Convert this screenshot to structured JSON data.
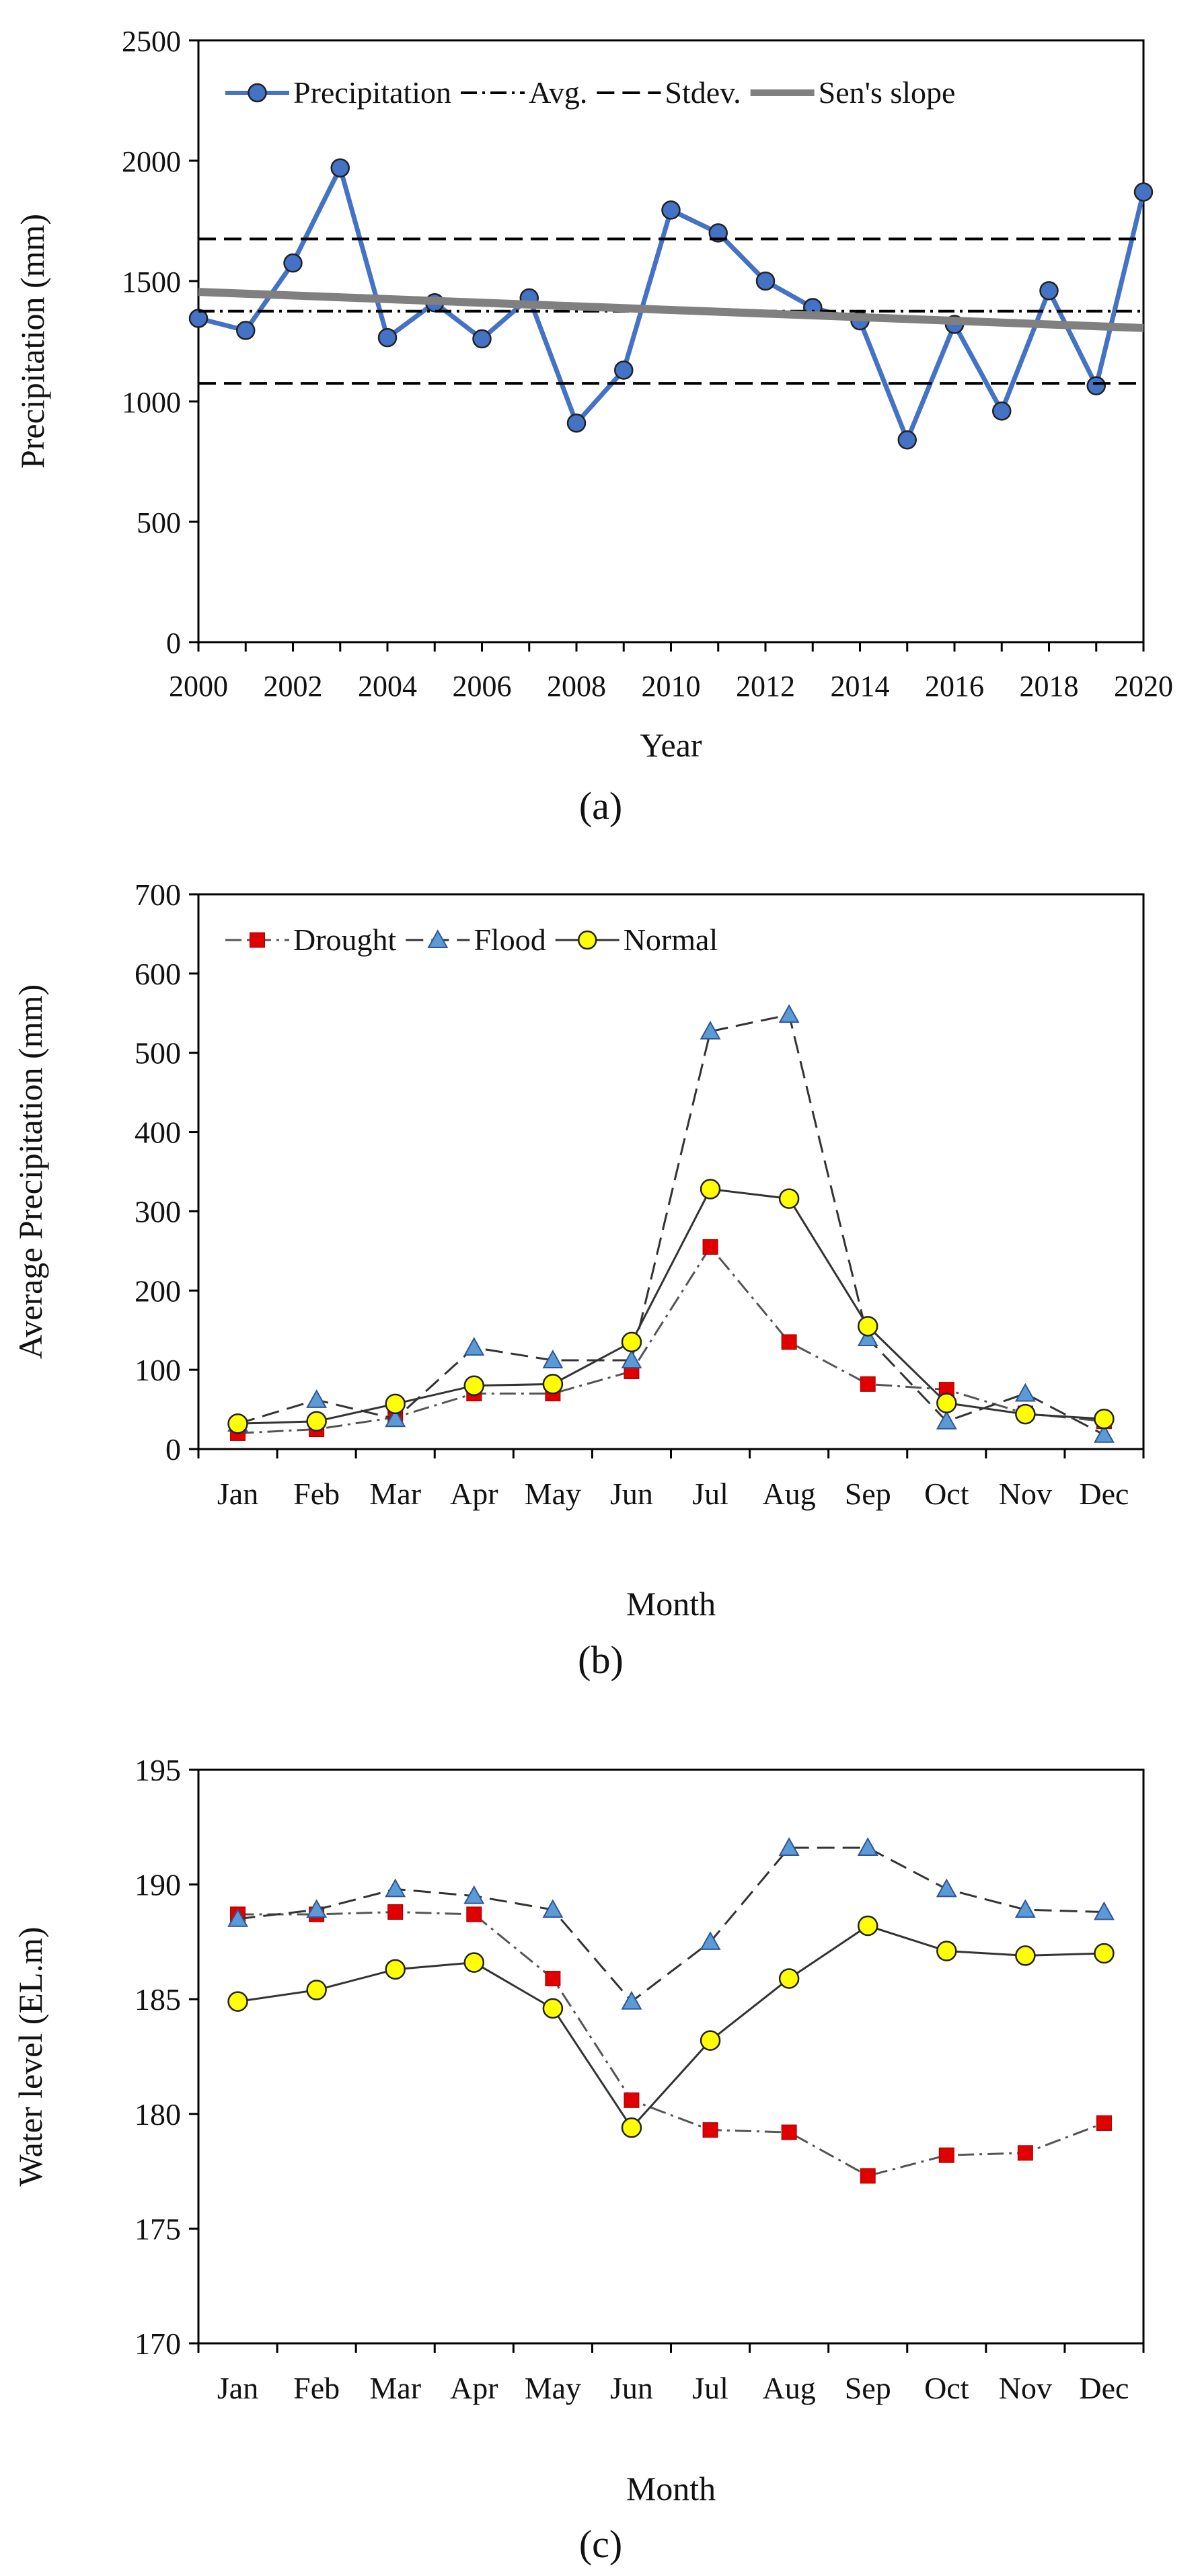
{
  "panels": [
    {
      "label": "(a)",
      "chart_data": {
        "type": "line",
        "xlabel": "Year",
        "ylabel": "Precipitation  (mm)",
        "xlim": [
          2000,
          2020
        ],
        "ylim": [
          0,
          2500
        ],
        "xticks": [
          2000,
          2002,
          2004,
          2006,
          2008,
          2010,
          2012,
          2014,
          2016,
          2018,
          2020
        ],
        "yticks": [
          0,
          500,
          1000,
          1500,
          2000,
          2500
        ],
        "grid": false,
        "legend_position": "top",
        "series": [
          {
            "name": "Precipitation",
            "kind": "line-markers",
            "color": "#4472c4",
            "marker": "circle",
            "x": [
              2000,
              2001,
              2002,
              2003,
              2004,
              2005,
              2006,
              2007,
              2008,
              2009,
              2010,
              2011,
              2012,
              2013,
              2014,
              2015,
              2016,
              2017,
              2018,
              2019,
              2020
            ],
            "y": [
              1345,
              1295,
              1575,
              1970,
              1265,
              1410,
              1260,
              1430,
              910,
              1130,
              1795,
              1700,
              1500,
              1390,
              1335,
              840,
              1320,
              960,
              1460,
              1065,
              1870
            ]
          },
          {
            "name": "Avg.",
            "kind": "hline",
            "style": "dashdot",
            "color": "#000000",
            "y": 1375
          },
          {
            "name": "Stdev.",
            "kind": "hlines",
            "style": "dashed",
            "color": "#000000",
            "y": [
              1675,
              1075
            ]
          },
          {
            "name": "Sen's slope",
            "kind": "trend",
            "color": "#808080",
            "x": [
              2000,
              2020
            ],
            "y": [
              1455,
              1305
            ]
          }
        ]
      }
    },
    {
      "label": "(b)",
      "chart_data": {
        "type": "line",
        "xlabel": "Month",
        "ylabel": "Average  Precipitation (mm)",
        "categories": [
          "Jan",
          "Feb",
          "Mar",
          "Apr",
          "May",
          "Jun",
          "Jul",
          "Aug",
          "Sep",
          "Oct",
          "Nov",
          "Dec"
        ],
        "ylim": [
          0,
          700
        ],
        "yticks": [
          0,
          100,
          200,
          300,
          400,
          500,
          600,
          700
        ],
        "grid": false,
        "legend_position": "top",
        "series": [
          {
            "name": "Drought",
            "style": "dashdot",
            "line_color": "#555555",
            "marker": "square",
            "marker_color": "#e00000",
            "values": [
              20,
              25,
              40,
              70,
              70,
              98,
              255,
              135,
              82,
              75,
              45,
              35
            ]
          },
          {
            "name": "Flood",
            "style": "dashed",
            "line_color": "#333333",
            "marker": "triangle",
            "marker_color": "#5b9bd5",
            "values": [
              32,
              62,
              38,
              128,
              112,
              112,
              527,
              548,
              140,
              35,
              70,
              18
            ]
          },
          {
            "name": "Normal",
            "style": "solid",
            "line_color": "#333333",
            "marker": "circle",
            "marker_color": "#ffff00",
            "values": [
              32,
              35,
              57,
              80,
              82,
              135,
              328,
              316,
              155,
              58,
              44,
              38
            ]
          }
        ]
      }
    },
    {
      "label": "(c)",
      "chart_data": {
        "type": "line",
        "xlabel": "Month",
        "ylabel": "Water level (EL.m)",
        "categories": [
          "Jan",
          "Feb",
          "Mar",
          "Apr",
          "May",
          "Jun",
          "Jul",
          "Aug",
          "Sep",
          "Oct",
          "Nov",
          "Dec"
        ],
        "ylim": [
          170,
          195
        ],
        "yticks": [
          170,
          175,
          180,
          185,
          190,
          195
        ],
        "grid": false,
        "legend_position": "none",
        "series": [
          {
            "name": "",
            "style": "dashdot",
            "line_color": "#555555",
            "marker": "square",
            "marker_color": "#e00000",
            "values": [
              188.7,
              188.7,
              188.8,
              188.7,
              185.9,
              180.6,
              179.3,
              179.2,
              177.3,
              178.2,
              178.3,
              179.6
            ]
          },
          {
            "name": "",
            "style": "dashed",
            "line_color": "#333333",
            "marker": "triangle",
            "marker_color": "#5b9bd5",
            "values": [
              188.5,
              188.9,
              189.8,
              189.5,
              188.9,
              184.9,
              187.5,
              191.6,
              191.6,
              189.8,
              188.9,
              188.8
            ]
          },
          {
            "name": "",
            "style": "solid",
            "line_color": "#333333",
            "marker": "circle",
            "marker_color": "#ffff00",
            "values": [
              184.9,
              185.4,
              186.3,
              186.6,
              184.6,
              179.4,
              183.2,
              185.9,
              188.2,
              187.1,
              186.9,
              187.0
            ]
          }
        ]
      }
    }
  ]
}
